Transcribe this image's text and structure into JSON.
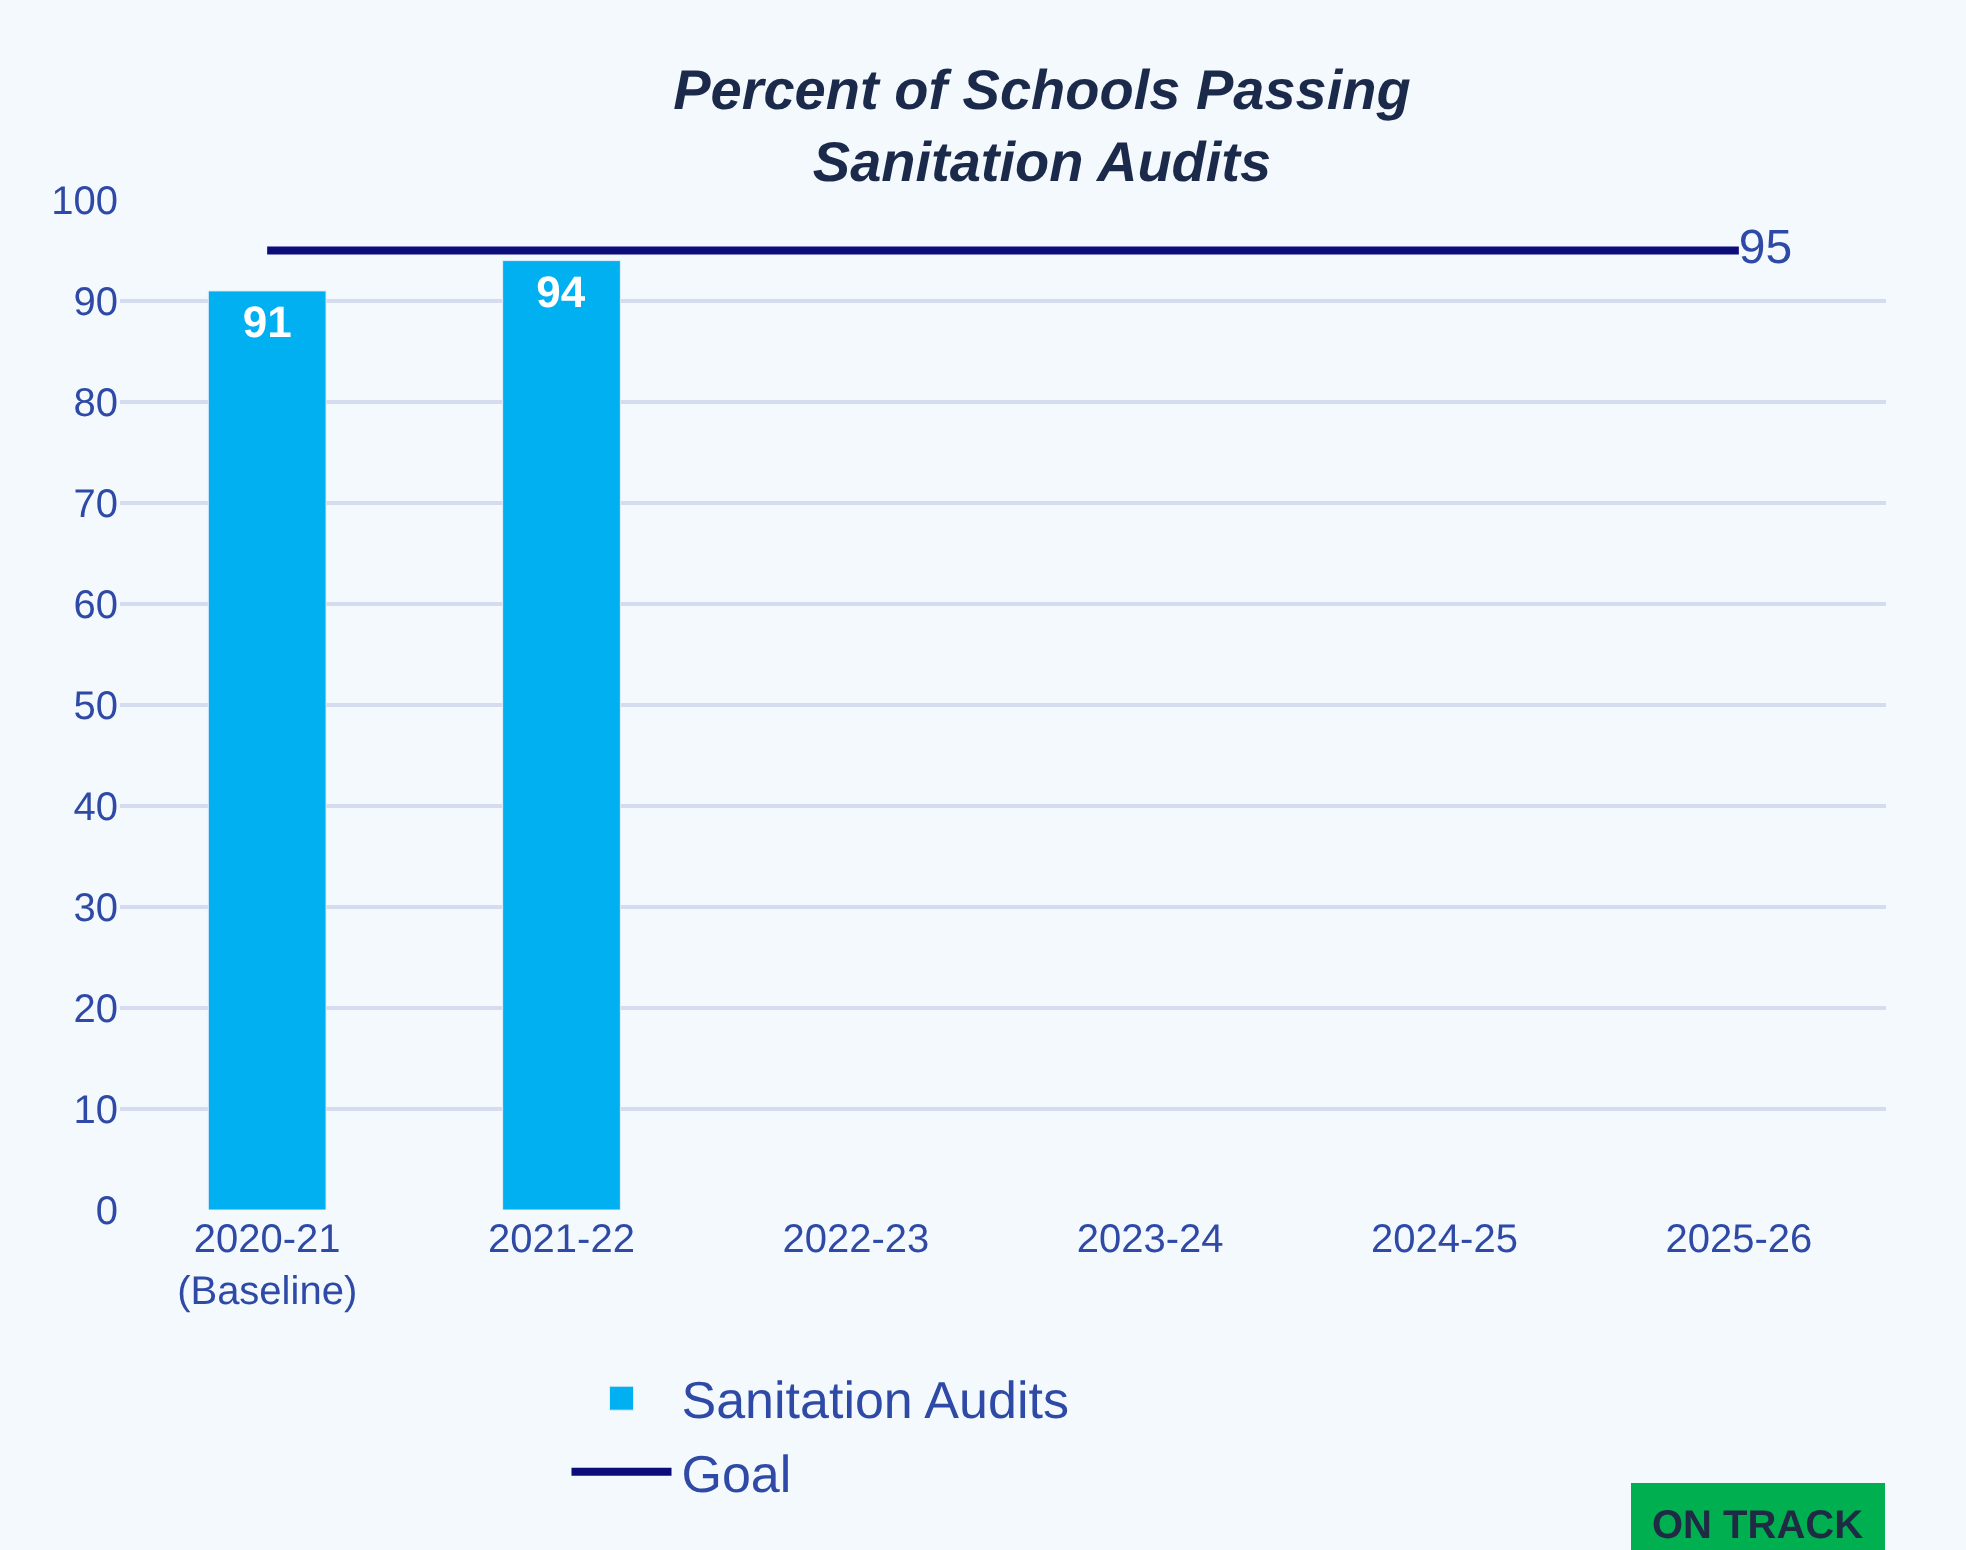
{
  "chart_data": {
    "type": "bar",
    "title": "Percent of Schools Passing\nSanitation Audits",
    "categories": [
      "2020-21\n(Baseline)",
      "2021-22",
      "2022-23",
      "2023-24",
      "2024-25",
      "2025-26"
    ],
    "series": [
      {
        "name": "Sanitation Audits",
        "color": "#00b0f0",
        "values": [
          91,
          94,
          null,
          null,
          null,
          null
        ],
        "value_labels": [
          "91",
          "94",
          null,
          null,
          null,
          null
        ]
      },
      {
        "name": "Goal",
        "type": "line",
        "color": "#0c0c7a",
        "values": [
          95,
          95,
          95,
          95,
          95,
          95
        ],
        "value_labels": [
          null,
          null,
          null,
          null,
          null,
          "95"
        ]
      }
    ],
    "ylim": [
      0,
      100
    ],
    "yticks": [
      0,
      10,
      20,
      30,
      40,
      50,
      60,
      70,
      80,
      90,
      100
    ],
    "grid": "y",
    "legend": "bottom",
    "annotations": [
      "ON TRACK"
    ]
  }
}
